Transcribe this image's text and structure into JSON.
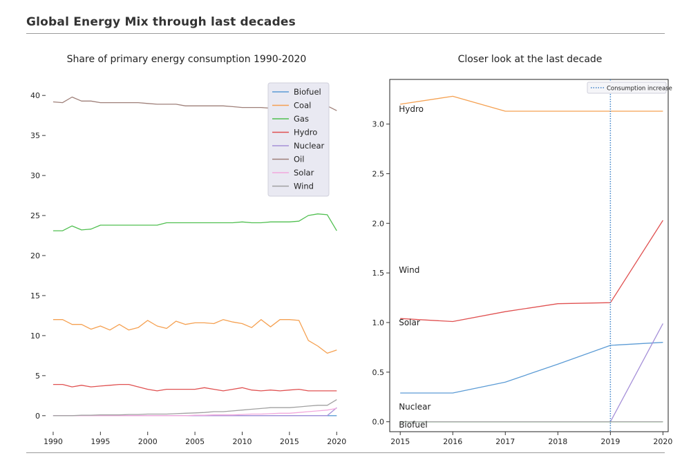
{
  "page": {
    "title": "Global Energy Mix through last decades"
  },
  "colors": {
    "Biofuel": "#5b9bd5",
    "Coal": "#f5a050",
    "Gas": "#4fbf4f",
    "Hydro": "#e05050",
    "Nuclear": "#a58fd8",
    "Oil": "#9e7f78",
    "Solar": "#f2a8dc",
    "Wind": "#a0a0a0",
    "vline": "#3a80c8"
  },
  "chart_data": [
    {
      "type": "line",
      "title": "Share of primary energy consumption 1990-2020",
      "xlabel": "",
      "ylabel": "",
      "xlim": [
        1989.2,
        2020.2
      ],
      "ylim": [
        -2,
        42
      ],
      "xticks": [
        1990,
        1995,
        2000,
        2005,
        2010,
        2015,
        2020
      ],
      "yticks": [
        0,
        5,
        10,
        15,
        20,
        25,
        30,
        35,
        40
      ],
      "grid": false,
      "legend": "top-right",
      "legend_entries": [
        "Biofuel",
        "Coal",
        "Gas",
        "Hydro",
        "Nuclear",
        "Oil",
        "Solar",
        "Wind"
      ],
      "x": [
        1990,
        1991,
        1992,
        1993,
        1994,
        1995,
        1996,
        1997,
        1998,
        1999,
        2000,
        2001,
        2002,
        2003,
        2004,
        2005,
        2006,
        2007,
        2008,
        2009,
        2010,
        2011,
        2012,
        2013,
        2014,
        2015,
        2016,
        2017,
        2018,
        2019,
        2020
      ],
      "series": [
        {
          "name": "Biofuel",
          "values": [
            0,
            0,
            0,
            0,
            0,
            0,
            0,
            0,
            0,
            0,
            0,
            0,
            0,
            0,
            0,
            0,
            0,
            0,
            0,
            0,
            0,
            0,
            0,
            0,
            0,
            0,
            0,
            0,
            0,
            0,
            0
          ]
        },
        {
          "name": "Coal",
          "values": [
            12.0,
            12.0,
            11.4,
            11.4,
            10.8,
            11.2,
            10.7,
            11.4,
            10.7,
            11.0,
            11.9,
            11.2,
            10.9,
            11.8,
            11.4,
            11.6,
            11.6,
            11.5,
            12.0,
            11.7,
            11.5,
            11.0,
            12.0,
            11.1,
            12.0,
            12.0,
            11.9,
            9.4,
            8.7,
            7.8,
            8.2
          ]
        },
        {
          "name": "Gas",
          "values": [
            23.1,
            23.1,
            23.7,
            23.2,
            23.3,
            23.8,
            23.8,
            23.8,
            23.8,
            23.8,
            23.8,
            23.8,
            24.1,
            24.1,
            24.1,
            24.1,
            24.1,
            24.1,
            24.1,
            24.1,
            24.2,
            24.1,
            24.1,
            24.2,
            24.2,
            24.2,
            24.3,
            25.0,
            25.2,
            25.1,
            23.1
          ]
        },
        {
          "name": "Hydro",
          "values": [
            3.9,
            3.9,
            3.6,
            3.8,
            3.6,
            3.7,
            3.8,
            3.9,
            3.9,
            3.6,
            3.3,
            3.1,
            3.3,
            3.3,
            3.3,
            3.3,
            3.5,
            3.3,
            3.1,
            3.3,
            3.5,
            3.2,
            3.1,
            3.2,
            3.1,
            3.2,
            3.3,
            3.1,
            3.1,
            3.1,
            3.1
          ]
        },
        {
          "name": "Nuclear",
          "values": [
            0,
            0,
            0,
            0,
            0,
            0,
            0,
            0,
            0,
            0,
            0,
            0,
            0,
            0,
            0,
            0,
            0,
            0,
            0,
            0,
            0,
            0,
            0,
            0,
            0,
            0,
            0,
            0,
            0,
            0,
            1.0
          ]
        },
        {
          "name": "Oil",
          "values": [
            39.2,
            39.1,
            39.8,
            39.3,
            39.3,
            39.1,
            39.1,
            39.1,
            39.1,
            39.1,
            39.0,
            38.9,
            38.9,
            38.9,
            38.7,
            38.7,
            38.7,
            38.7,
            38.7,
            38.6,
            38.5,
            38.5,
            38.5,
            38.4,
            38.4,
            38.4,
            38.5,
            38.6,
            38.6,
            38.7,
            38.1
          ]
        },
        {
          "name": "Solar",
          "values": [
            0,
            0,
            0,
            0,
            0,
            0,
            0,
            0,
            0,
            0,
            0,
            0,
            0,
            0,
            0,
            0.05,
            0.05,
            0.1,
            0.1,
            0.1,
            0.15,
            0.2,
            0.2,
            0.25,
            0.3,
            0.3,
            0.4,
            0.5,
            0.6,
            0.7,
            0.9
          ]
        },
        {
          "name": "Wind",
          "values": [
            0,
            0,
            0,
            0.05,
            0.05,
            0.1,
            0.1,
            0.1,
            0.15,
            0.15,
            0.2,
            0.2,
            0.2,
            0.25,
            0.3,
            0.35,
            0.4,
            0.5,
            0.5,
            0.6,
            0.7,
            0.8,
            0.9,
            1.0,
            1.0,
            1.0,
            1.1,
            1.2,
            1.3,
            1.3,
            2.0
          ]
        }
      ]
    },
    {
      "type": "line",
      "title": "Closer look at the last decade",
      "xlabel": "",
      "ylabel": "",
      "xlim": [
        2014.8,
        2020.1
      ],
      "ylim": [
        -0.1,
        3.45
      ],
      "xticks": [
        2015,
        2016,
        2017,
        2018,
        2019,
        2020
      ],
      "yticks": [
        0.0,
        0.5,
        1.0,
        1.5,
        2.0,
        2.5,
        3.0
      ],
      "ytick_labels": [
        "0.0",
        "0.5",
        "1.0",
        "1.5",
        "2.0",
        "2.5",
        "3.0"
      ],
      "grid": false,
      "legend": "top-right",
      "legend_entries": [
        "Consumption increase"
      ],
      "vline": {
        "x": 2019,
        "label": "Consumption increase",
        "style": "dotted"
      },
      "x": [
        2015,
        2016,
        2017,
        2018,
        2019,
        2020
      ],
      "series": [
        {
          "name": "Coal",
          "values": [
            3.2,
            3.28,
            3.13,
            3.13,
            3.13,
            3.13
          ]
        },
        {
          "name": "Hydro",
          "values": [
            1.04,
            1.01,
            1.11,
            1.19,
            1.2,
            2.03
          ]
        },
        {
          "name": "Biofuel",
          "values": [
            0.29,
            0.29,
            0.4,
            0.58,
            0.77,
            0.8
          ]
        },
        {
          "name": "Nuclear",
          "values": [
            0,
            0,
            0,
            0,
            0,
            0.99
          ]
        },
        {
          "name": "Gas",
          "values": [
            0,
            0,
            0,
            0,
            0,
            0
          ]
        },
        {
          "name": "Wind",
          "values": [
            0,
            0,
            0,
            0,
            0,
            0
          ]
        }
      ],
      "annotations": [
        {
          "text": "Hydro",
          "x": 2015.0,
          "y": 3.15
        },
        {
          "text": "Wind",
          "x": 2015.0,
          "y": 1.53
        },
        {
          "text": "Solar",
          "x": 2015.0,
          "y": 1.0
        },
        {
          "text": "Nuclear",
          "x": 2015.0,
          "y": 0.15
        },
        {
          "text": "Biofuel",
          "x": 2015.0,
          "y": -0.03
        }
      ]
    }
  ]
}
